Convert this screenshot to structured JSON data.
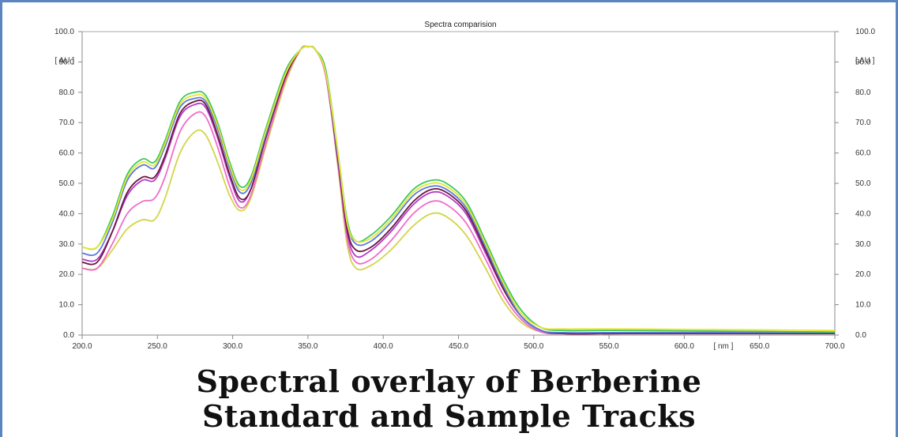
{
  "caption": {
    "line1": "Spectral overlay of Berberine",
    "line2": "Standard and Sample Tracks"
  },
  "chart_data": {
    "type": "line",
    "title": "Spectra comparision",
    "xlabel": "[ nm ]",
    "ylabel": "[ AU ]",
    "xlim": [
      200,
      700
    ],
    "ylim": [
      0,
      100
    ],
    "xticks": [
      "200.0",
      "250.0",
      "300.0",
      "350.0",
      "400.0",
      "450.0",
      "500.0",
      "550.0",
      "600.0",
      "650.0",
      "700.0"
    ],
    "yticks": [
      "0.0",
      "10.0",
      "20.0",
      "30.0",
      "40.0",
      "50.0",
      "60.0",
      "70.0",
      "80.0",
      "90.0",
      "100.0"
    ],
    "grid": false,
    "series": [
      {
        "color": "#d4d44a",
        "values": [
          [
            200,
            22
          ],
          [
            210,
            22
          ],
          [
            220,
            28
          ],
          [
            230,
            35
          ],
          [
            240,
            38
          ],
          [
            248,
            38
          ],
          [
            255,
            45
          ],
          [
            265,
            60
          ],
          [
            275,
            67
          ],
          [
            282,
            66
          ],
          [
            290,
            57
          ],
          [
            298,
            46
          ],
          [
            305,
            41
          ],
          [
            312,
            45
          ],
          [
            322,
            62
          ],
          [
            335,
            83
          ],
          [
            345,
            94
          ],
          [
            350,
            95
          ],
          [
            355,
            94
          ],
          [
            362,
            85
          ],
          [
            370,
            55
          ],
          [
            376,
            30
          ],
          [
            382,
            22
          ],
          [
            392,
            23
          ],
          [
            405,
            28
          ],
          [
            420,
            36
          ],
          [
            432,
            40
          ],
          [
            442,
            39
          ],
          [
            455,
            33
          ],
          [
            468,
            22
          ],
          [
            480,
            11
          ],
          [
            492,
            4
          ],
          [
            505,
            1
          ],
          [
            520,
            0.5
          ],
          [
            560,
            0.5
          ],
          [
            700,
            0.5
          ]
        ]
      },
      {
        "color": "#f06cc8",
        "values": [
          [
            200,
            22
          ],
          [
            210,
            22
          ],
          [
            220,
            30
          ],
          [
            230,
            40
          ],
          [
            240,
            44
          ],
          [
            248,
            45
          ],
          [
            255,
            52
          ],
          [
            265,
            67
          ],
          [
            275,
            73
          ],
          [
            282,
            72
          ],
          [
            290,
            62
          ],
          [
            298,
            49
          ],
          [
            305,
            42
          ],
          [
            312,
            46
          ],
          [
            322,
            63
          ],
          [
            335,
            84
          ],
          [
            345,
            94
          ],
          [
            350,
            95
          ],
          [
            355,
            94
          ],
          [
            362,
            85
          ],
          [
            370,
            56
          ],
          [
            376,
            32
          ],
          [
            382,
            24
          ],
          [
            392,
            25
          ],
          [
            405,
            31
          ],
          [
            420,
            40
          ],
          [
            432,
            44
          ],
          [
            442,
            43
          ],
          [
            455,
            37
          ],
          [
            468,
            25
          ],
          [
            480,
            13
          ],
          [
            492,
            5
          ],
          [
            505,
            1
          ],
          [
            520,
            0.5
          ],
          [
            560,
            0.5
          ],
          [
            700,
            0.5
          ]
        ]
      },
      {
        "color": "#b43ac8",
        "values": [
          [
            200,
            25
          ],
          [
            210,
            25
          ],
          [
            220,
            34
          ],
          [
            230,
            46
          ],
          [
            240,
            51
          ],
          [
            248,
            51
          ],
          [
            255,
            58
          ],
          [
            265,
            72
          ],
          [
            275,
            76
          ],
          [
            282,
            75
          ],
          [
            290,
            65
          ],
          [
            298,
            52
          ],
          [
            305,
            44
          ],
          [
            312,
            48
          ],
          [
            322,
            65
          ],
          [
            335,
            85
          ],
          [
            345,
            94
          ],
          [
            350,
            95
          ],
          [
            355,
            94
          ],
          [
            362,
            86
          ],
          [
            370,
            57
          ],
          [
            376,
            34
          ],
          [
            382,
            26
          ],
          [
            392,
            28
          ],
          [
            405,
            34
          ],
          [
            420,
            43
          ],
          [
            432,
            47
          ],
          [
            442,
            46
          ],
          [
            455,
            40
          ],
          [
            468,
            27
          ],
          [
            480,
            15
          ],
          [
            492,
            6
          ],
          [
            505,
            1.5
          ],
          [
            520,
            0.5
          ],
          [
            560,
            0.5
          ],
          [
            700,
            0.5
          ]
        ]
      },
      {
        "color": "#6a1840",
        "values": [
          [
            200,
            24
          ],
          [
            210,
            24
          ],
          [
            220,
            34
          ],
          [
            230,
            47
          ],
          [
            240,
            52
          ],
          [
            248,
            52
          ],
          [
            255,
            59
          ],
          [
            265,
            73
          ],
          [
            275,
            77
          ],
          [
            282,
            76
          ],
          [
            290,
            66
          ],
          [
            298,
            53
          ],
          [
            305,
            45
          ],
          [
            312,
            48
          ],
          [
            322,
            65
          ],
          [
            335,
            85
          ],
          [
            345,
            94
          ],
          [
            350,
            95
          ],
          [
            355,
            94
          ],
          [
            362,
            86
          ],
          [
            370,
            58
          ],
          [
            376,
            35
          ],
          [
            382,
            28
          ],
          [
            392,
            29
          ],
          [
            405,
            35
          ],
          [
            420,
            44
          ],
          [
            432,
            48
          ],
          [
            442,
            47
          ],
          [
            455,
            41
          ],
          [
            468,
            28
          ],
          [
            480,
            15
          ],
          [
            492,
            6
          ],
          [
            505,
            1.5
          ],
          [
            520,
            0.5
          ],
          [
            560,
            0.5
          ],
          [
            700,
            0.5
          ]
        ]
      },
      {
        "color": "#5a7ae0",
        "values": [
          [
            200,
            27
          ],
          [
            210,
            27
          ],
          [
            220,
            37
          ],
          [
            230,
            51
          ],
          [
            240,
            56
          ],
          [
            248,
            55
          ],
          [
            255,
            62
          ],
          [
            265,
            75
          ],
          [
            275,
            78
          ],
          [
            282,
            77
          ],
          [
            290,
            68
          ],
          [
            298,
            55
          ],
          [
            305,
            47
          ],
          [
            312,
            50
          ],
          [
            322,
            66
          ],
          [
            335,
            86
          ],
          [
            345,
            94
          ],
          [
            350,
            95
          ],
          [
            355,
            94
          ],
          [
            362,
            86
          ],
          [
            370,
            59
          ],
          [
            376,
            37
          ],
          [
            382,
            30
          ],
          [
            392,
            31
          ],
          [
            405,
            37
          ],
          [
            420,
            46
          ],
          [
            432,
            49
          ],
          [
            442,
            48
          ],
          [
            455,
            42
          ],
          [
            468,
            29
          ],
          [
            480,
            16
          ],
          [
            492,
            6
          ],
          [
            505,
            1.5
          ],
          [
            520,
            0.8
          ],
          [
            560,
            0.8
          ],
          [
            700,
            0.8
          ]
        ]
      },
      {
        "color": "#3cc85a",
        "values": [
          [
            200,
            29
          ],
          [
            210,
            29
          ],
          [
            220,
            39
          ],
          [
            230,
            53
          ],
          [
            240,
            58
          ],
          [
            248,
            57
          ],
          [
            255,
            64
          ],
          [
            265,
            77
          ],
          [
            275,
            80
          ],
          [
            282,
            79
          ],
          [
            290,
            70
          ],
          [
            298,
            57
          ],
          [
            305,
            49
          ],
          [
            312,
            52
          ],
          [
            322,
            68
          ],
          [
            335,
            87
          ],
          [
            345,
            94
          ],
          [
            350,
            95
          ],
          [
            355,
            94
          ],
          [
            362,
            87
          ],
          [
            370,
            60
          ],
          [
            376,
            38
          ],
          [
            382,
            31
          ],
          [
            392,
            33
          ],
          [
            405,
            39
          ],
          [
            420,
            48
          ],
          [
            432,
            51
          ],
          [
            442,
            50
          ],
          [
            455,
            44
          ],
          [
            468,
            31
          ],
          [
            480,
            18
          ],
          [
            492,
            8
          ],
          [
            505,
            2.5
          ],
          [
            520,
            1.5
          ],
          [
            560,
            1.5
          ],
          [
            700,
            1.0
          ]
        ]
      },
      {
        "color": "#e6e632",
        "values": [
          [
            200,
            29
          ],
          [
            210,
            29
          ],
          [
            220,
            38
          ],
          [
            230,
            52
          ],
          [
            240,
            57
          ],
          [
            248,
            56
          ],
          [
            255,
            63
          ],
          [
            265,
            76
          ],
          [
            275,
            79
          ],
          [
            282,
            78
          ],
          [
            290,
            69
          ],
          [
            298,
            56
          ],
          [
            305,
            48
          ],
          [
            312,
            51
          ],
          [
            322,
            67
          ],
          [
            335,
            86
          ],
          [
            345,
            94
          ],
          [
            350,
            95
          ],
          [
            355,
            94
          ],
          [
            362,
            86
          ],
          [
            370,
            60
          ],
          [
            376,
            37
          ],
          [
            382,
            31
          ],
          [
            392,
            32
          ],
          [
            405,
            38
          ],
          [
            420,
            47
          ],
          [
            432,
            50
          ],
          [
            442,
            49
          ],
          [
            455,
            43
          ],
          [
            468,
            30
          ],
          [
            480,
            17
          ],
          [
            492,
            7
          ],
          [
            505,
            2.5
          ],
          [
            520,
            2
          ],
          [
            560,
            2
          ],
          [
            700,
            1.5
          ]
        ]
      }
    ]
  }
}
